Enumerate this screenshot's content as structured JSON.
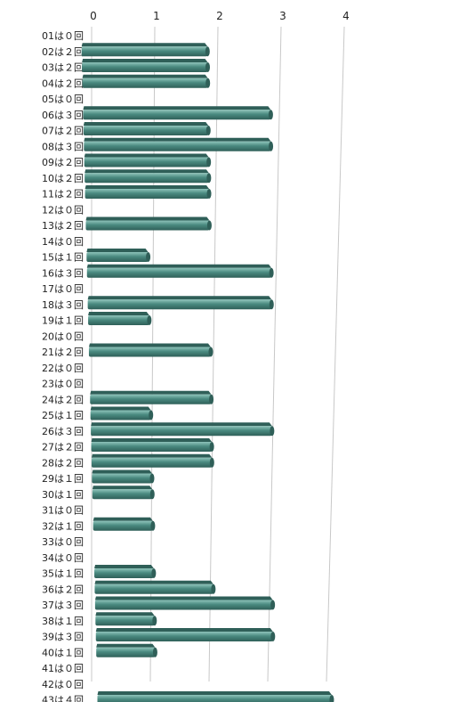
{
  "chart_data": {
    "type": "bar",
    "orientation": "horizontal",
    "title": "",
    "xlabel": "",
    "ylabel": "",
    "xlim": [
      0,
      4
    ],
    "xticks": [
      "0",
      "1",
      "2",
      "3",
      "4"
    ],
    "grid": true,
    "legend": "none",
    "bar_color": "#4a8a80",
    "bar_dark": "#2f5f58",
    "bar_light": "#8fc4bb",
    "categories": [
      "01は０回",
      "02は２回",
      "03は２回",
      "04は２回",
      "05は０回",
      "06は３回",
      "07は２回",
      "08は３回",
      "09は２回",
      "10は２回",
      "11は２回",
      "12は０回",
      "13は２回",
      "14は０回",
      "15は１回",
      "16は３回",
      "17は０回",
      "18は３回",
      "19は１回",
      "20は０回",
      "21は２回",
      "22は０回",
      "23は０回",
      "24は２回",
      "25は１回",
      "26は３回",
      "27は２回",
      "28は２回",
      "29は１回",
      "30は１回",
      "31は０回",
      "32は１回",
      "33は０回",
      "34は０回",
      "35は１回",
      "36は２回",
      "37は３回",
      "38は１回",
      "39は３回",
      "40は１回",
      "41は０回",
      "42は０回",
      "43は４回"
    ],
    "values": [
      0,
      2,
      2,
      2,
      0,
      3,
      2,
      3,
      2,
      2,
      2,
      0,
      2,
      0,
      1,
      3,
      0,
      3,
      1,
      0,
      2,
      0,
      0,
      2,
      1,
      3,
      2,
      2,
      1,
      1,
      0,
      1,
      0,
      0,
      1,
      2,
      3,
      1,
      3,
      1,
      0,
      0,
      4
    ]
  }
}
